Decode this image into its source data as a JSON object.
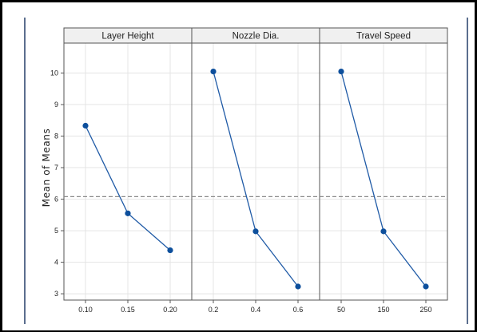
{
  "chart_data": {
    "type": "line",
    "title": "",
    "ylabel": "Mean of Means",
    "ylim": [
      2.8,
      10.95
    ],
    "yticks": [
      3,
      4,
      5,
      6,
      7,
      8,
      9,
      10
    ],
    "reference_line": 6.08,
    "grid": true,
    "panels": [
      {
        "name": "Layer Height",
        "categories": [
          "0.10",
          "0.15",
          "0.20"
        ],
        "values": [
          8.33,
          5.55,
          4.38
        ]
      },
      {
        "name": "Nozzle Dia.",
        "categories": [
          "0.2",
          "0.4",
          "0.6"
        ],
        "values": [
          10.05,
          4.98,
          3.23
        ]
      },
      {
        "name": "Travel Speed",
        "categories": [
          "50",
          "150",
          "250"
        ],
        "values": [
          10.05,
          4.98,
          3.23
        ]
      }
    ],
    "colors": {
      "line": "#1f5aa6",
      "point": "#0d4f9c",
      "reference": "#8a8a8a",
      "grid": "#e4e4e4",
      "header": "#f0f0f0"
    }
  }
}
